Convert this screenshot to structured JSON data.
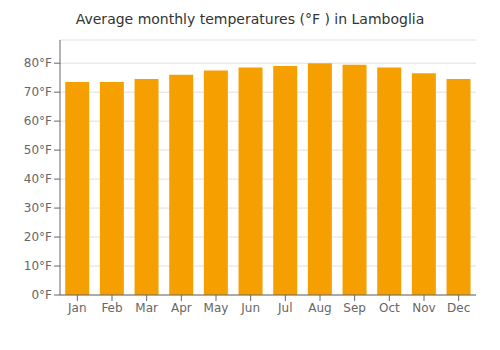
{
  "chart_data": {
    "type": "bar",
    "title": "Average monthly temperatures (°F ) in Lamboglia",
    "categories": [
      "Jan",
      "Feb",
      "Mar",
      "Apr",
      "May",
      "Jun",
      "Jul",
      "Aug",
      "Sep",
      "Oct",
      "Nov",
      "Dec"
    ],
    "values": [
      73.5,
      73.5,
      74.5,
      76.0,
      77.5,
      78.5,
      79.0,
      80.0,
      79.5,
      78.5,
      76.5,
      74.5
    ],
    "color": "#F5A000",
    "ylim": [
      0,
      88
    ],
    "yticks": [
      {
        "value": 0,
        "label": "0°F"
      },
      {
        "value": 10,
        "label": "10°F"
      },
      {
        "value": 20,
        "label": "20°F"
      },
      {
        "value": 30,
        "label": "30°F"
      },
      {
        "value": 40,
        "label": "40°F"
      },
      {
        "value": 50,
        "label": "50°F"
      },
      {
        "value": 60,
        "label": "60°F"
      },
      {
        "value": 70,
        "label": "70°F"
      },
      {
        "value": 80,
        "label": "80°F"
      }
    ],
    "grid": true
  }
}
